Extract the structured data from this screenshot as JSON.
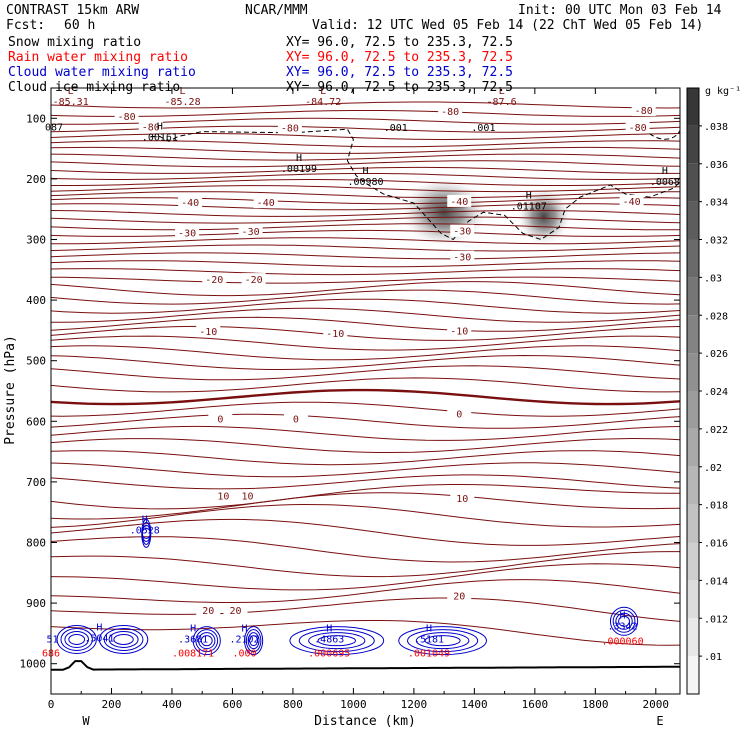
{
  "header": {
    "model": "CONTRAST 15km ARW",
    "org": "NCAR/MMM",
    "init": "Init: 00 UTC Mon 03 Feb 14",
    "fcst_label": "Fcst:",
    "fcst_value": "60 h",
    "valid": "Valid: 12 UTC Wed 05 Feb 14 (22 ChT Wed 05 Feb 14)"
  },
  "fields": [
    {
      "name": "Snow mixing ratio",
      "xy": "XY=  96.0, 72.5 to 235.3, 72.5",
      "color": "#000000"
    },
    {
      "name": "Rain water mixing ratio",
      "xy": "XY=  96.0, 72.5 to 235.3, 72.5",
      "color": "#ff0000"
    },
    {
      "name": "Cloud water mixing ratio",
      "xy": "XY=  96.0, 72.5 to 235.3, 72.5",
      "color": "#0000cc"
    },
    {
      "name": "Cloud ice mixing ratio",
      "xy": "XY=  96.0, 72.5 to 235.3, 72.5",
      "color": "#000000"
    }
  ],
  "chart_data": {
    "type": "cross-section",
    "xlabel": "Distance (km)",
    "ylabel": "Pressure (hPa)",
    "xlim": [
      0,
      2080
    ],
    "ylim": [
      1050,
      50
    ],
    "x_ticks": [
      "0",
      "200",
      "400",
      "600",
      "800",
      "1000",
      "1200",
      "1400",
      "1600",
      "1800",
      "2000"
    ],
    "y_ticks": [
      "100",
      "200",
      "300",
      "400",
      "500",
      "600",
      "700",
      "800",
      "900",
      "1000"
    ],
    "x_end_labels": {
      "left": "W",
      "right": "E"
    },
    "colorbar": {
      "unit": "g kg⁻¹",
      "ticks": [
        ".01",
        ".012",
        ".014",
        ".016",
        ".018",
        ".02",
        ".022",
        ".024",
        ".026",
        ".028",
        ".03",
        ".032",
        ".034",
        ".036",
        ".038"
      ]
    },
    "temperature_contours": {
      "color": "#7a0f0f",
      "labels": [
        {
          "x": 250,
          "p": 98,
          "t": "-80"
        },
        {
          "x": 330,
          "p": 115,
          "t": "-80"
        },
        {
          "x": 790,
          "p": 117,
          "t": "-80"
        },
        {
          "x": 1320,
          "p": 90,
          "t": "-80"
        },
        {
          "x": 1960,
          "p": 88,
          "t": "-80"
        },
        {
          "x": 1940,
          "p": 116,
          "t": "-80"
        },
        {
          "x": 460,
          "p": 240,
          "t": "-40"
        },
        {
          "x": 710,
          "p": 240,
          "t": "-40"
        },
        {
          "x": 1350,
          "p": 238,
          "t": "-40"
        },
        {
          "x": 1920,
          "p": 238,
          "t": "-40"
        },
        {
          "x": 450,
          "p": 290,
          "t": "-30"
        },
        {
          "x": 660,
          "p": 288,
          "t": "-30"
        },
        {
          "x": 1360,
          "p": 287,
          "t": "-30"
        },
        {
          "x": 1360,
          "p": 330,
          "t": "-30"
        },
        {
          "x": 540,
          "p": 367,
          "t": "-20"
        },
        {
          "x": 670,
          "p": 367,
          "t": "-20"
        },
        {
          "x": 520,
          "p": 453,
          "t": "-10"
        },
        {
          "x": 940,
          "p": 456,
          "t": "-10"
        },
        {
          "x": 1350,
          "p": 452,
          "t": "-10"
        },
        {
          "x": 560,
          "p": 597,
          "t": "0"
        },
        {
          "x": 810,
          "p": 597,
          "t": "0"
        },
        {
          "x": 1350,
          "p": 589,
          "t": "0"
        },
        {
          "x": 570,
          "p": 724,
          "t": "10"
        },
        {
          "x": 650,
          "p": 724,
          "t": "10"
        },
        {
          "x": 1360,
          "p": 728,
          "t": "10"
        },
        {
          "x": 520,
          "p": 913,
          "t": "20"
        },
        {
          "x": 610,
          "p": 913,
          "t": "20"
        },
        {
          "x": 1350,
          "p": 889,
          "t": "20"
        }
      ]
    },
    "max_min_labels": [
      {
        "x": 65,
        "p": 75,
        "mark": "L",
        "value": "-85.31",
        "color": "#7a0f0f"
      },
      {
        "x": 435,
        "p": 75,
        "mark": "L",
        "value": "-85.28",
        "color": "#7a0f0f"
      },
      {
        "x": 900,
        "p": 75,
        "mark": "L",
        "value": "-84.72",
        "color": "#7a0f0f"
      },
      {
        "x": 1490,
        "p": 75,
        "mark": "L",
        "value": "-87.6",
        "color": "#7a0f0f"
      },
      {
        "x": 10,
        "p": 117,
        "mark": "",
        "value": "087",
        "color": "#000000"
      },
      {
        "x": 360,
        "p": 133,
        "mark": "H",
        "value": ".00161",
        "color": "#000000"
      },
      {
        "x": 820,
        "p": 185,
        "mark": "H",
        "value": ".00199",
        "color": "#000000"
      },
      {
        "x": 1040,
        "p": 207,
        "mark": "H",
        "value": ".00980",
        "color": "#000000"
      },
      {
        "x": 1580,
        "p": 247,
        "mark": "H",
        "value": ".01107",
        "color": "#000000"
      },
      {
        "x": 2030,
        "p": 207,
        "mark": "H",
        "value": ".0068",
        "color": "#000000"
      },
      {
        "x": 310,
        "p": 782,
        "mark": "H",
        "value": ".0528",
        "color": "#0000cc"
      },
      {
        "x": 160,
        "p": 960,
        "mark": "H",
        "value": ".5041",
        "color": "#0000cc"
      },
      {
        "x": 470,
        "p": 962,
        "mark": "H",
        "value": ".3681",
        "color": "#0000cc"
      },
      {
        "x": 640,
        "p": 962,
        "mark": "H",
        "value": ".2102",
        "color": "#0000cc"
      },
      {
        "x": 920,
        "p": 962,
        "mark": "H",
        "value": ".4863",
        "color": "#0000cc"
      },
      {
        "x": 1250,
        "p": 962,
        "mark": "H",
        "value": ".5181",
        "color": "#0000cc"
      },
      {
        "x": 1890,
        "p": 940,
        "mark": "H",
        "value": ".3342",
        "color": "#0000cc"
      },
      {
        "x": 5,
        "p": 962,
        "mark": "",
        "value": "51",
        "color": "#0000cc"
      },
      {
        "x": 0,
        "p": 985,
        "mark": "",
        "value": "686",
        "color": "#ff0000"
      },
      {
        "x": 470,
        "p": 985,
        "mark": "",
        "value": ".008171",
        "color": "#ff0000"
      },
      {
        "x": 640,
        "p": 985,
        "mark": "",
        "value": ".000",
        "color": "#ff0000"
      },
      {
        "x": 920,
        "p": 985,
        "mark": "",
        "value": ".000695",
        "color": "#ff0000"
      },
      {
        "x": 1250,
        "p": 985,
        "mark": "",
        "value": ".001049",
        "color": "#ff0000"
      },
      {
        "x": 1890,
        "p": 965,
        "mark": "",
        "value": ".000060",
        "color": "#ff0000"
      }
    ],
    "snow_contour_labels": [
      {
        "x": 1140,
        "p": 116,
        "t": ".001"
      },
      {
        "x": 1430,
        "p": 116,
        "t": ".001"
      }
    ],
    "shaded_maxima": [
      {
        "x": 1300,
        "p": 255,
        "label": "snow/ice max"
      },
      {
        "x": 1630,
        "p": 262,
        "label": "snow/ice max"
      }
    ]
  }
}
